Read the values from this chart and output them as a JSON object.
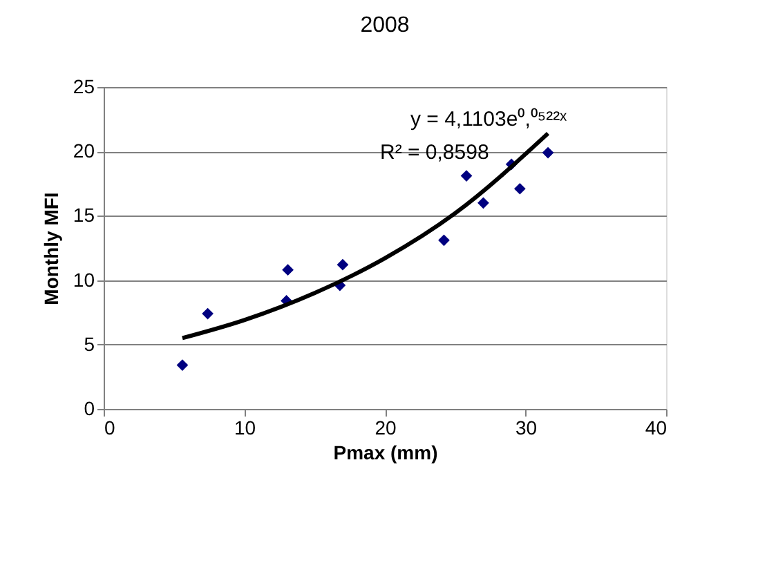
{
  "chart_data": {
    "type": "scatter",
    "title": "2008",
    "xlabel": "Pmax (mm)",
    "ylabel": "Monthly MFI",
    "x": [
      5.6,
      7.4,
      13.0,
      13.1,
      16.8,
      17.0,
      24.2,
      25.8,
      27.0,
      29.0,
      29.6,
      31.6
    ],
    "series": [
      {
        "color": "#000080",
        "marker": "diamond",
        "values": [
          3.4,
          7.4,
          8.4,
          10.8,
          9.6,
          11.2,
          13.1,
          18.1,
          16.0,
          19.0,
          17.1,
          19.9
        ]
      },
      {
        "type": "line",
        "color": "#000000",
        "x": [
          5.6,
          10,
          15,
          20,
          25,
          31.6
        ],
        "values": [
          5.5,
          6.9,
          9.0,
          11.7,
          15.2,
          21.4
        ]
      }
    ],
    "annotations": [
      "y = 4,1103e⁰,⁰⁵²²ˣ",
      "R² = 0,8598"
    ],
    "xlim": [
      0,
      40
    ],
    "xticks": [
      0,
      10,
      20,
      30,
      40
    ],
    "ylim": [
      0,
      25
    ],
    "yticks": [
      0,
      5,
      10,
      15,
      20,
      25
    ],
    "grid": "y"
  }
}
